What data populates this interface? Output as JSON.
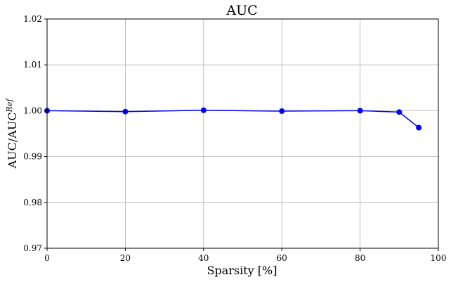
{
  "chart_data": {
    "type": "line",
    "title": "AUC",
    "xlabel": "Sparsity [%]",
    "ylabel": "AUC/AUC",
    "ylabel_superscript": "Ref",
    "xlim": [
      0,
      100
    ],
    "ylim": [
      0.97,
      1.02
    ],
    "xticks": [
      0,
      20,
      40,
      60,
      80,
      100
    ],
    "yticks": [
      0.97,
      0.98,
      0.99,
      1.0,
      1.01,
      1.02
    ],
    "xtick_labels": [
      "0",
      "20",
      "40",
      "60",
      "80",
      "100"
    ],
    "ytick_labels": [
      "0.97",
      "0.98",
      "0.99",
      "1.00",
      "1.01",
      "1.02"
    ],
    "grid": true,
    "series": [
      {
        "color": "#0000ff",
        "marker": "circle",
        "x": [
          0,
          20,
          40,
          60,
          80,
          90,
          95
        ],
        "y": [
          1.0,
          0.9998,
          1.0001,
          0.9999,
          1.0,
          0.9997,
          0.9963
        ]
      }
    ]
  }
}
